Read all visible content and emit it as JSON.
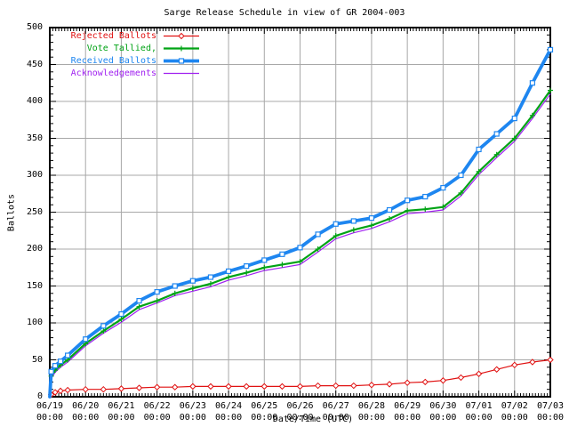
{
  "page": {
    "background": "#ffffff"
  },
  "chart_data": {
    "type": "line",
    "title": "Sarge Release Schedule in view of GR 2004-003",
    "xlabel": "Date/Time (UTC)",
    "ylabel": "Ballots",
    "ylim": [
      0,
      500
    ],
    "ytick_step": 50,
    "y_tick_labels": [
      "0",
      "50",
      "100",
      "150",
      "200",
      "250",
      "300",
      "350",
      "400",
      "450",
      "500"
    ],
    "x_range_days": 14,
    "x_ticks": {
      "dates": [
        "06/19",
        "06/20",
        "06/21",
        "06/22",
        "06/23",
        "06/24",
        "06/25",
        "06/26",
        "06/27",
        "06/28",
        "06/29",
        "06/30",
        "07/01",
        "07/02",
        "07/03"
      ],
      "time_label": "00:00"
    },
    "grid": true,
    "legend_position": "top-left",
    "colors": {
      "grid": "#a8a8a8",
      "axis": "#000000",
      "background": "#ffffff"
    },
    "x_days": [
      0,
      0.04,
      0.15,
      0.3,
      0.5,
      1,
      1.5,
      2,
      2.5,
      3,
      3.5,
      4,
      4.5,
      5,
      5.5,
      6,
      6.5,
      7,
      7.5,
      8,
      8.5,
      9,
      9.5,
      10,
      10.5,
      11,
      11.5,
      12,
      12.5,
      13,
      13.5,
      14
    ],
    "series": [
      {
        "name": "Rejected Ballots",
        "color": "#e01212",
        "marker": "diamond",
        "values": [
          0,
          3,
          6,
          8,
          9,
          10,
          10,
          11,
          12,
          13,
          13,
          14,
          14,
          14,
          14,
          14,
          14,
          14,
          15,
          15,
          15,
          16,
          17,
          19,
          20,
          22,
          26,
          31,
          37,
          43,
          47,
          50
        ]
      },
      {
        "name": "Vote Tallied,",
        "color": "#00a315",
        "marker": "plus",
        "values": [
          0,
          28,
          36,
          43,
          50,
          72,
          89,
          105,
          122,
          130,
          140,
          147,
          153,
          162,
          168,
          175,
          179,
          183,
          200,
          218,
          226,
          232,
          241,
          252,
          254,
          257,
          276,
          305,
          328,
          350,
          381,
          415
        ]
      },
      {
        "name": "Received Ballots",
        "color": "#1e86f0",
        "marker": "square",
        "values": [
          0,
          34,
          42,
          48,
          56,
          78,
          96,
          112,
          130,
          142,
          150,
          157,
          162,
          170,
          177,
          185,
          193,
          202,
          220,
          234,
          238,
          242,
          253,
          266,
          271,
          283,
          300,
          335,
          356,
          377,
          425,
          470
        ]
      },
      {
        "name": "Acknowledgements",
        "color": "#a020f0",
        "marker": "none",
        "values": [
          0,
          25,
          33,
          40,
          47,
          69,
          86,
          101,
          118,
          127,
          137,
          143,
          149,
          158,
          164,
          171,
          175,
          179,
          196,
          214,
          222,
          228,
          237,
          248,
          250,
          253,
          272,
          301,
          324,
          346,
          377,
          410
        ]
      }
    ]
  }
}
